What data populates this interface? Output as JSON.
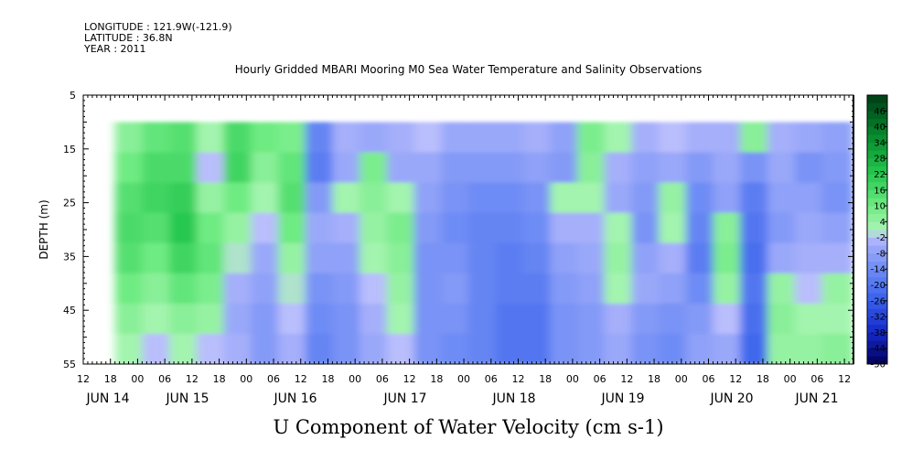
{
  "header": {
    "longitude": "LONGITUDE : 121.9W(-121.9)",
    "latitude": "LATITUDE : 36.8N",
    "year": "YEAR : 2011"
  },
  "chart_data": {
    "type": "heatmap",
    "title": "Hourly Gridded MBARI Mooring M0 Sea Water Temperature and Salinity Observations",
    "xlabel": "U Component of Water Velocity (cm s-1)",
    "ylabel": "DEPTH (m)",
    "y_axis": {
      "range": [
        5,
        55
      ],
      "inverted": true,
      "tick_labels": [
        "5",
        "15",
        "25",
        "35",
        "45",
        "55"
      ]
    },
    "x_axis": {
      "range_hours": [
        0,
        170
      ],
      "hour_tick_labels": [
        "12",
        "18",
        "00",
        "06",
        "12",
        "18",
        "00",
        "06",
        "12",
        "18",
        "00",
        "06",
        "12",
        "18",
        "00",
        "06",
        "12",
        "18",
        "00",
        "06",
        "12",
        "18",
        "00",
        "06",
        "12",
        "18",
        "00",
        "06",
        "12"
      ],
      "date_labels": [
        "JUN 14",
        "JUN 15",
        "JUN 16",
        "JUN 17",
        "JUN 18",
        "JUN 19",
        "JUN 20",
        "JUN 21"
      ]
    },
    "data_extent": {
      "depth_top_m": 10,
      "depth_bottom_m": 55,
      "start": "JUN 14 19:00",
      "end": "JUN 21 14:00"
    },
    "colorbar": {
      "labels": [
        "46",
        "40",
        "34",
        "28",
        "22",
        "16",
        "10",
        "4",
        "-2",
        "-8",
        "-14",
        "-20",
        "-26",
        "-32",
        "-38",
        "-44",
        "-50"
      ],
      "min": -50,
      "max": 52,
      "step": 3
    },
    "columns": [
      {
        "start": "JUN 14 19:00",
        "v": [
          6,
          10,
          14,
          16,
          14,
          10,
          6,
          2
        ]
      },
      {
        "start": "JUN 15 01:00",
        "v": [
          12,
          16,
          18,
          14,
          10,
          6,
          2,
          -2
        ]
      },
      {
        "start": "JUN 15 07:00",
        "v": [
          14,
          16,
          20,
          22,
          18,
          12,
          6,
          2
        ]
      },
      {
        "start": "JUN 15 13:00",
        "v": [
          2,
          -2,
          4,
          10,
          12,
          8,
          4,
          -2
        ]
      },
      {
        "start": "JUN 15 19:00",
        "v": [
          16,
          18,
          10,
          4,
          0,
          -4,
          -6,
          -4
        ]
      },
      {
        "start": "JUN 16 01:00",
        "v": [
          10,
          6,
          2,
          -2,
          -6,
          -8,
          -10,
          -10
        ]
      },
      {
        "start": "JUN 16 07:00",
        "v": [
          8,
          12,
          14,
          10,
          4,
          0,
          -2,
          -4
        ]
      },
      {
        "start": "JUN 16 13:00",
        "v": [
          -16,
          -18,
          -10,
          -6,
          -8,
          -12,
          -14,
          -16
        ]
      },
      {
        "start": "JUN 16 19:00",
        "v": [
          -4,
          -6,
          2,
          -4,
          -8,
          -10,
          -12,
          -12
        ]
      },
      {
        "start": "JUN 17 01:00",
        "v": [
          -6,
          8,
          6,
          4,
          2,
          -2,
          -4,
          -6
        ]
      },
      {
        "start": "JUN 17 07:00",
        "v": [
          -4,
          -6,
          2,
          8,
          6,
          4,
          2,
          -2
        ]
      },
      {
        "start": "JUN 17 13:00",
        "v": [
          -2,
          -6,
          -8,
          -10,
          -12,
          -12,
          -12,
          -12
        ]
      },
      {
        "start": "JUN 17 19:00",
        "v": [
          -6,
          -10,
          -12,
          -14,
          -12,
          -10,
          -12,
          -14
        ]
      },
      {
        "start": "JUN 18 01:00",
        "v": [
          -6,
          -10,
          -14,
          -16,
          -16,
          -16,
          -16,
          -16
        ]
      },
      {
        "start": "JUN 18 07:00",
        "v": [
          -6,
          -10,
          -14,
          -16,
          -18,
          -18,
          -20,
          -20
        ]
      },
      {
        "start": "JUN 18 13:00",
        "v": [
          -4,
          -8,
          -12,
          -14,
          -16,
          -18,
          -20,
          -20
        ]
      },
      {
        "start": "JUN 18 19:00",
        "v": [
          -8,
          -10,
          2,
          -4,
          -8,
          -10,
          -12,
          -12
        ]
      },
      {
        "start": "JUN 19 01:00",
        "v": [
          8,
          6,
          2,
          -4,
          -6,
          -8,
          -10,
          -10
        ]
      },
      {
        "start": "JUN 19 07:00",
        "v": [
          2,
          -4,
          -6,
          2,
          4,
          2,
          -4,
          -6
        ]
      },
      {
        "start": "JUN 19 13:00",
        "v": [
          -4,
          -8,
          -10,
          -12,
          -8,
          -6,
          -10,
          -12
        ]
      },
      {
        "start": "JUN 19 19:00",
        "v": [
          -2,
          -6,
          4,
          2,
          -4,
          -8,
          -12,
          -14
        ]
      },
      {
        "start": "JUN 20 01:00",
        "v": [
          -4,
          -10,
          -14,
          -16,
          -18,
          -14,
          -10,
          -8
        ]
      },
      {
        "start": "JUN 20 07:00",
        "v": [
          -4,
          -6,
          -8,
          6,
          8,
          4,
          -2,
          -6
        ]
      },
      {
        "start": "JUN 20 13:00",
        "v": [
          6,
          -12,
          -18,
          -20,
          -22,
          -20,
          -22,
          -24
        ]
      },
      {
        "start": "JUN 20 19:00",
        "v": [
          -4,
          -6,
          -8,
          -10,
          -6,
          4,
          6,
          4
        ]
      },
      {
        "start": "JUN 21 01:00",
        "v": [
          -6,
          -12,
          -8,
          -6,
          -4,
          -2,
          2,
          4
        ]
      },
      {
        "start": "JUN 21 07:00",
        "v": [
          -8,
          -10,
          -12,
          -8,
          -4,
          4,
          2,
          6
        ]
      }
    ]
  }
}
